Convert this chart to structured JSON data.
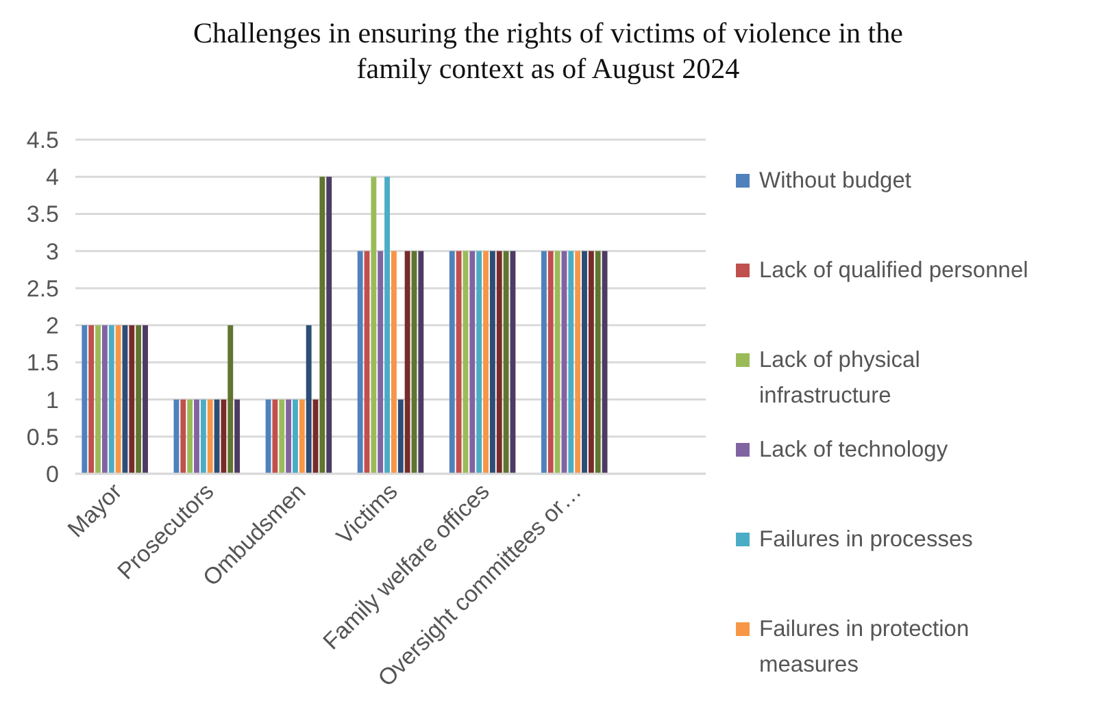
{
  "chart_data": {
    "type": "bar",
    "title": "Challenges in ensuring the rights of victims of violence in the family context as of August 2024",
    "categories": [
      "Mayor",
      "Prosecutors",
      "Ombudsmen",
      "Victims",
      "Family welfare offices",
      "Oversight committees or…",
      null
    ],
    "series": [
      {
        "name": "Without budget",
        "color": "#4f81bd",
        "values": [
          2,
          1,
          1,
          3,
          3,
          3,
          null
        ]
      },
      {
        "name": "Lack of qualified personnel",
        "color": "#c0504d",
        "values": [
          2,
          1,
          1,
          3,
          3,
          3,
          null
        ]
      },
      {
        "name": "Lack of physical infrastructure",
        "color": "#9bbb59",
        "values": [
          2,
          1,
          1,
          4,
          3,
          3,
          null
        ]
      },
      {
        "name": "Lack of technology",
        "color": "#8064a2",
        "values": [
          2,
          1,
          1,
          3,
          3,
          3,
          null
        ]
      },
      {
        "name": "Failures in processes",
        "color": "#4bacc6",
        "values": [
          2,
          1,
          1,
          4,
          3,
          3,
          null
        ]
      },
      {
        "name": "Failures in protection measures",
        "color": "#f79646",
        "values": [
          2,
          1,
          1,
          3,
          3,
          3,
          null
        ]
      },
      {
        "color": "#2c4d75",
        "values": [
          2,
          1,
          2,
          1,
          3,
          3,
          null
        ]
      },
      {
        "color": "#772c2a",
        "values": [
          2,
          1,
          1,
          3,
          3,
          3,
          null
        ]
      },
      {
        "color": "#5f7530",
        "values": [
          2,
          2,
          4,
          3,
          3,
          3,
          null
        ]
      },
      {
        "color": "#4d3b62",
        "values": [
          2,
          1,
          4,
          3,
          3,
          3,
          null
        ]
      }
    ],
    "ylim": [
      0,
      4.5
    ],
    "yticks": [
      0,
      0.5,
      1,
      1.5,
      2,
      2.5,
      3,
      3.5,
      4,
      4.5
    ],
    "grid": "y",
    "legend": "right"
  }
}
